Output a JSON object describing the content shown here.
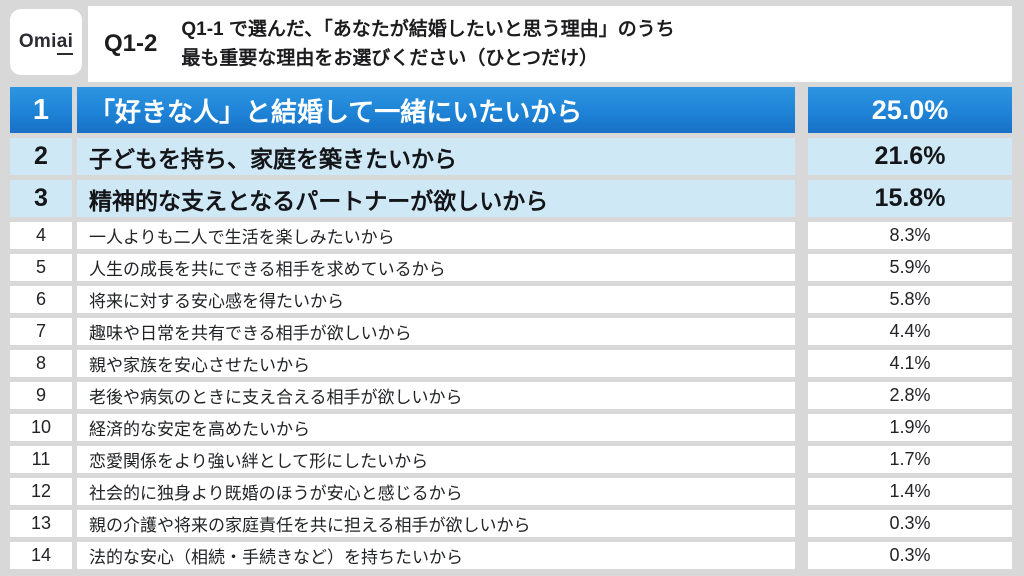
{
  "logo": {
    "text": "Omiai",
    "text_main": "Omi",
    "text_accent": "ai"
  },
  "header": {
    "question_number": "Q1-2",
    "question_line1": "Q1-1 で選んだ、「あなたが結婚したいと思う理由」のうち",
    "question_line2": "最も重要な理由をお選びください（ひとつだけ）"
  },
  "colors": {
    "page_background": "#d8d8d8",
    "rank1_blue": "#1e83d6",
    "rank2_3_light_blue": "#cfe8f6",
    "row_white": "#ffffff",
    "text_dark": "#1c1c1e",
    "rank1_text": "#ffffff"
  },
  "chart_data": {
    "type": "table",
    "title": "Q1-1 で選んだ、「あなたが結婚したいと思う理由」のうち最も重要な理由をお選びください（ひとつだけ）",
    "columns": [
      "rank",
      "reason",
      "percent"
    ],
    "rows": [
      {
        "rank": "1",
        "reason": "「好きな人」と結婚して一緒にいたいから",
        "percent": "25.0%",
        "value": 25.0
      },
      {
        "rank": "2",
        "reason": "子どもを持ち、家庭を築きたいから",
        "percent": "21.6%",
        "value": 21.6
      },
      {
        "rank": "3",
        "reason": "精神的な支えとなるパートナーが欲しいから",
        "percent": "15.8%",
        "value": 15.8
      },
      {
        "rank": "4",
        "reason": "一人よりも二人で生活を楽しみたいから",
        "percent": "8.3%",
        "value": 8.3
      },
      {
        "rank": "5",
        "reason": "人生の成長を共にできる相手を求めているから",
        "percent": "5.9%",
        "value": 5.9
      },
      {
        "rank": "6",
        "reason": "将来に対する安心感を得たいから",
        "percent": "5.8%",
        "value": 5.8
      },
      {
        "rank": "7",
        "reason": "趣味や日常を共有できる相手が欲しいから",
        "percent": "4.4%",
        "value": 4.4
      },
      {
        "rank": "8",
        "reason": "親や家族を安心させたいから",
        "percent": "4.1%",
        "value": 4.1
      },
      {
        "rank": "9",
        "reason": "老後や病気のときに支え合える相手が欲しいから",
        "percent": "2.8%",
        "value": 2.8
      },
      {
        "rank": "10",
        "reason": "経済的な安定を高めたいから",
        "percent": "1.9%",
        "value": 1.9
      },
      {
        "rank": "11",
        "reason": "恋愛関係をより強い絆として形にしたいから",
        "percent": "1.7%",
        "value": 1.7
      },
      {
        "rank": "12",
        "reason": "社会的に独身より既婚のほうが安心と感じるから",
        "percent": "1.4%",
        "value": 1.4
      },
      {
        "rank": "13",
        "reason": "親の介護や将来の家庭責任を共に担える相手が欲しいから",
        "percent": "0.3%",
        "value": 0.3
      },
      {
        "rank": "14",
        "reason": "法的な安心（相続・手続きなど）を持ちたいから",
        "percent": "0.3%",
        "value": 0.3
      }
    ]
  }
}
